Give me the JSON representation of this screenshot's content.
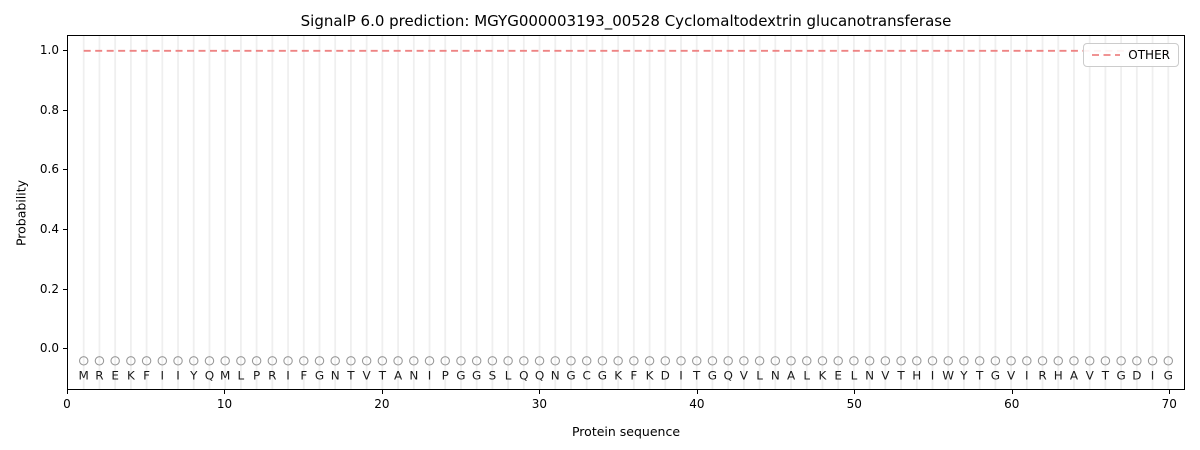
{
  "figure": {
    "kind": "SignalP 6.0 prediction plot"
  },
  "chart_data": {
    "type": "line",
    "title": "SignalP 6.0 prediction: MGYG000003193_00528 Cyclomaltodextrin glucanotransferase",
    "xlabel": "Protein sequence",
    "ylabel": "Probability",
    "xlim": [
      0,
      71
    ],
    "ylim": [
      -0.14,
      1.05
    ],
    "x_ticks": [
      0,
      10,
      20,
      30,
      40,
      50,
      60,
      70
    ],
    "y_ticks": [
      0.0,
      0.2,
      0.4,
      0.6,
      0.8,
      1.0
    ],
    "grid": {
      "vertical_line_per_residue": true,
      "horizontal": false,
      "color": "#efefef"
    },
    "legend": {
      "position": "upper-right",
      "entries": [
        {
          "label": "OTHER",
          "color": "#ee8484",
          "linestyle": "dashed"
        }
      ]
    },
    "series": [
      {
        "name": "OTHER",
        "color": "#ee8484",
        "linestyle": "dashed",
        "x_start": 1,
        "x_end": 70,
        "y_constant": 1.0,
        "note": "flat line at probability 1.0 across all 70 residues"
      }
    ],
    "sequence": "MREKFIIYQMLPRIFGNTVTANIPGGSLQQNGCGKFKDITGQVLNALKELNVTHIWYTGVIRHAVTGDIG",
    "sequence_length": 70,
    "residue_markers": {
      "shape": "open-circle",
      "color": "#999999",
      "y_value": -0.045
    },
    "residue_letters_y_value": -0.095,
    "colors": {
      "spine": "#000000",
      "tick_text": "#000000",
      "letter_text": "#1a1a1a"
    }
  }
}
